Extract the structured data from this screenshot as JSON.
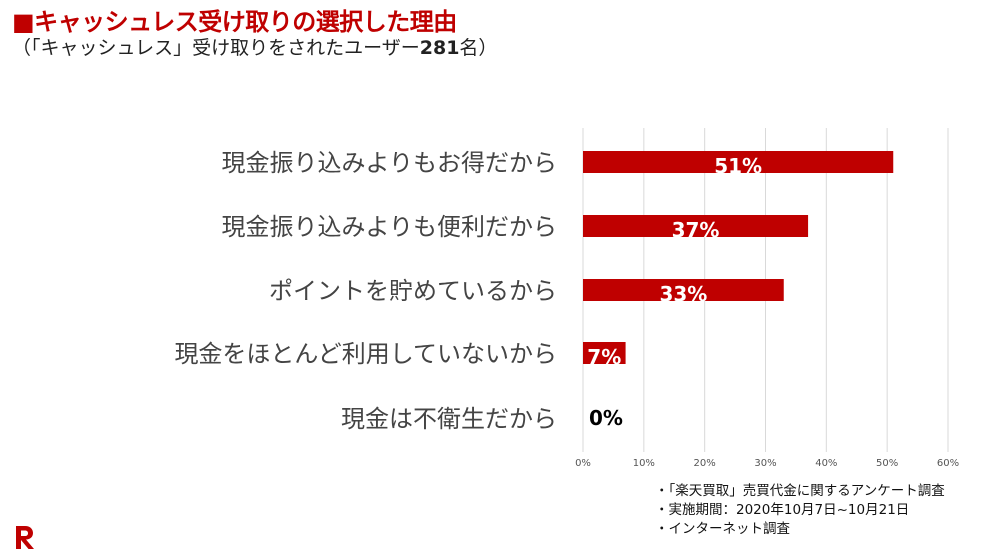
{
  "header": {
    "title": "■キャッシュレス受け取りの選択した理由",
    "subtitle_prefix": "（「キャッシュレス」受け取りをされたユーザー",
    "subtitle_number": "281",
    "subtitle_suffix": "名）"
  },
  "chart_data": {
    "type": "bar",
    "orientation": "horizontal",
    "categories": [
      "現金振り込みよりもお得だから",
      "現金振り込みよりも便利だから",
      "ポイントを貯めているから",
      "現金をほとんど利用していないから",
      "現金は不衛生だから"
    ],
    "values": [
      51,
      37,
      33,
      7,
      0
    ],
    "data_labels": [
      "51%",
      "37%",
      "33%",
      "7%",
      "0%"
    ],
    "xlim": [
      0,
      60
    ],
    "x_ticks": [
      0,
      10,
      20,
      30,
      40,
      50,
      60
    ],
    "x_tick_labels": [
      "0%",
      "10%",
      "20%",
      "30%",
      "40%",
      "50%",
      "60%"
    ],
    "grid": true,
    "bar_color": "#bf0000"
  },
  "notes": [
    "・「楽天買取」売買代金に関するアンケート調査",
    "・実施期間：2020年10月7日~10月21日",
    "・インターネット調査"
  ],
  "logo": {
    "icon": "rakuten-r-logo",
    "color": "#bf0000"
  }
}
